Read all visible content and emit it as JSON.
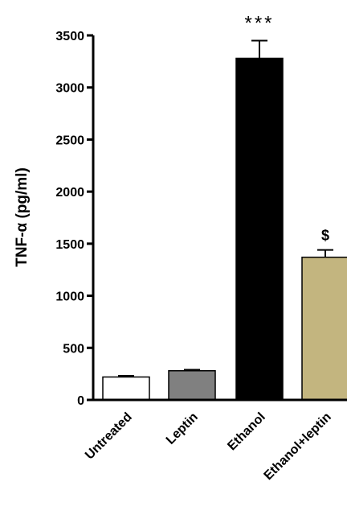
{
  "chart_data": {
    "type": "bar",
    "categories": [
      "Untreated",
      "Leptin",
      "Ethanol",
      "Ethanol+leptin"
    ],
    "values": [
      220,
      280,
      3280,
      1370
    ],
    "errors": [
      12,
      10,
      170,
      70
    ],
    "bar_colors": [
      "#ffffff",
      "#808080",
      "#000000",
      "#c3b57f"
    ],
    "annotations": [
      "",
      "",
      "***",
      "$"
    ],
    "ylabel": "TNF-α (pg/ml)",
    "xlabel": "",
    "title": "",
    "ylim": [
      0,
      3500
    ],
    "yticks": [
      0,
      500,
      1000,
      1500,
      2000,
      2500,
      3000,
      3500
    ],
    "ytick_labels": [
      "0",
      "500",
      "1000",
      "1500",
      "2000",
      "2500",
      "3000",
      "3500"
    ],
    "grid": false,
    "legend": "none"
  }
}
